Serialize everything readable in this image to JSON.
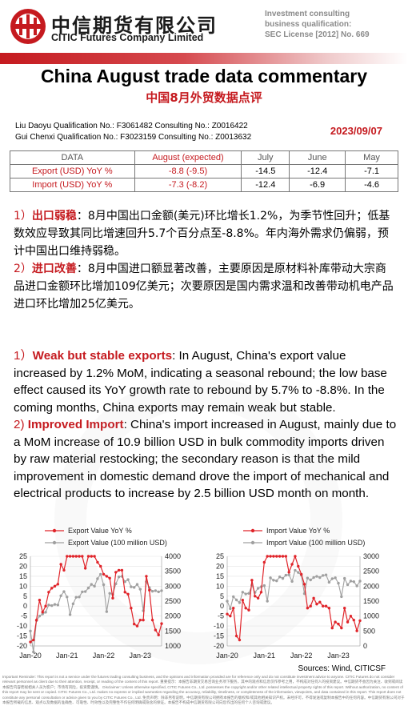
{
  "header": {
    "company_cn": "中信期货有限公司",
    "company_en": "CITIC Futures Company Limited",
    "reg_line1": "Investment consulting",
    "reg_line2": "business qualification:",
    "reg_line3": "SEC License [2012] No. 669",
    "logo_icon": "citic-logo-icon",
    "brand_color": "#c51a1f"
  },
  "title": {
    "en": "China August trade data commentary",
    "cn": "中国8月外贸数据点评"
  },
  "analysts": {
    "line1": "Liu Daoyu  Qualification No.: F3061482  Consulting No.: Z0016422",
    "line2": "Gui Chenxi Qualification No.: F3023159  Consulting No.: Z0013632"
  },
  "date": "2023/09/07",
  "table": {
    "headers": [
      "DATA",
      "August (expected)",
      "July",
      "June",
      "May"
    ],
    "rows": [
      {
        "label": "Export (USD) YoY %",
        "cells": [
          "-8.8 (-9.5)",
          "-14.5",
          "-12.4",
          "-7.1"
        ]
      },
      {
        "label": "Import (USD) YoY %",
        "cells": [
          "-7.3 (-8.2)",
          "-12.4",
          "-6.9",
          "-4.6"
        ]
      }
    ]
  },
  "cn_body": {
    "p1_num": "1）",
    "p1_kw": "出口弱稳",
    "p1_sep": "：",
    "p1_text": "8月中国出口金额(美元)环比增长1.2%，为季节性回升；低基数效应导致其同比增速回升5.7个百分点至-8.8%。年内海外需求仍偏弱，预计中国出口维持弱稳。",
    "p2_num": "2）",
    "p2_kw": "进口改善",
    "p2_sep": "：",
    "p2_text": "8月中国进口额显著改善，主要原因是原材料补库带动大宗商品进口金额环比增加109亿美元；次要原因是国内需求温和改善带动机电产品进口环比增加25亿美元。"
  },
  "en_body": {
    "p1_num": "1）",
    "p1_kw": "Weak but stable exports",
    "p1_text": ": In August, China's export value increased by 1.2% MoM, indicating a seasonal rebound; the low base effect caused its YoY growth rate to rebound by 5.7% to -8.8%. In the coming months, China exports may remain weak but stable.",
    "p2_num": "2) ",
    "p2_kw": "Improved Import",
    "p2_text": ": China's import increased in August, mainly due to a MoM increase of 10.9 billion USD in bulk commodity imports driven by raw material restocking; the secondary reason is that the mild improvement in domestic demand drove the import of mechanical and electrical products to increase by 2.5 billion USD month on month."
  },
  "chart_data": [
    {
      "type": "line",
      "x": [
        "Jan-20",
        "Feb-20",
        "Mar-20",
        "Apr-20",
        "May-20",
        "Jun-20",
        "Jul-20",
        "Aug-20",
        "Sep-20",
        "Oct-20",
        "Nov-20",
        "Dec-20",
        "Jan-21",
        "Feb-21",
        "Mar-21",
        "Apr-21",
        "May-21",
        "Jun-21",
        "Jul-21",
        "Aug-21",
        "Sep-21",
        "Oct-21",
        "Nov-21",
        "Dec-21",
        "Jan-22",
        "Feb-22",
        "Mar-22",
        "Apr-22",
        "May-22",
        "Jun-22",
        "Jul-22",
        "Aug-22",
        "Sep-22",
        "Oct-22",
        "Nov-22",
        "Dec-22",
        "Jan-23",
        "Feb-23",
        "Mar-23",
        "Apr-23",
        "May-23",
        "Jun-23",
        "Jul-23",
        "Aug-23"
      ],
      "xtick_labels": [
        "Jan-20",
        "Jan-21",
        "Jan-22",
        "Jan-23"
      ],
      "series": [
        {
          "name": "Export Value YoY %",
          "axis": "left",
          "color": "#e0242a",
          "values": [
            -18,
            -17,
            -7,
            3,
            -3,
            0,
            7,
            9,
            10,
            11,
            21,
            18,
            25,
            25,
            25,
            25,
            25,
            25,
            19,
            25,
            25,
            25,
            22,
            20,
            16,
            15,
            14,
            4,
            17,
            18,
            18,
            7,
            6,
            -1,
            -9,
            -10,
            -7,
            -7,
            15,
            8,
            -7,
            -12,
            -14.5,
            -8.8
          ]
        },
        {
          "name": "Export Value (100 million USD)",
          "axis": "right",
          "color": "#a0a0a0",
          "values": [
            1500,
            800,
            1850,
            2000,
            2070,
            2130,
            2370,
            2350,
            2390,
            2370,
            2680,
            2820,
            2640,
            2050,
            2410,
            2630,
            2640,
            2810,
            2820,
            2940,
            3060,
            3000,
            3250,
            3400,
            3050,
            2150,
            2760,
            2730,
            3080,
            3310,
            3330,
            3150,
            3220,
            2980,
            2960,
            3060,
            2900,
            2180,
            3150,
            2950,
            2830,
            2850,
            2810,
            2850
          ]
        }
      ],
      "ylim_left": [
        -20,
        25
      ],
      "ylim_right": [
        1000,
        4000
      ],
      "yticks_left": [
        -20,
        -15,
        -10,
        -5,
        0,
        5,
        10,
        15,
        20,
        25
      ],
      "yticks_right": [
        1000,
        1500,
        2000,
        2500,
        3000,
        3500,
        4000
      ],
      "legend": "top-left"
    },
    {
      "type": "line",
      "x": [
        "Jan-20",
        "Feb-20",
        "Mar-20",
        "Apr-20",
        "May-20",
        "Jun-20",
        "Jul-20",
        "Aug-20",
        "Sep-20",
        "Oct-20",
        "Nov-20",
        "Dec-20",
        "Jan-21",
        "Feb-21",
        "Mar-21",
        "Apr-21",
        "May-21",
        "Jun-21",
        "Jul-21",
        "Aug-21",
        "Sep-21",
        "Oct-21",
        "Nov-21",
        "Dec-21",
        "Jan-22",
        "Feb-22",
        "Mar-22",
        "Apr-22",
        "May-22",
        "Jun-22",
        "Jul-22",
        "Aug-22",
        "Sep-22",
        "Oct-22",
        "Nov-22",
        "Dec-22",
        "Jan-23",
        "Feb-23",
        "Mar-23",
        "Apr-23",
        "May-23",
        "Jun-23",
        "Jul-23",
        "Aug-23"
      ],
      "xtick_labels": [
        "Jan-20",
        "Jan-21",
        "Jan-22",
        "Jan-23"
      ],
      "series": [
        {
          "name": "Import Value YoY %",
          "axis": "left",
          "color": "#e0242a",
          "values": [
            -4,
            -5,
            -1,
            -15,
            -17,
            3,
            -1,
            -2,
            13,
            5,
            4,
            7,
            22,
            25,
            25,
            25,
            25,
            25,
            25,
            25,
            17,
            21,
            25,
            20,
            16,
            11,
            -1,
            0,
            4,
            1,
            2,
            0,
            0,
            -1,
            -11,
            -8,
            -9,
            -11,
            -1,
            -8,
            -5,
            -7,
            -12.4,
            -7.3
          ]
        },
        {
          "name": "Import Value (100 million USD)",
          "axis": "right",
          "color": "#a0a0a0",
          "values": [
            1500,
            1250,
            1650,
            1540,
            1450,
            1800,
            1740,
            1760,
            2030,
            1790,
            1930,
            1980,
            2020,
            1500,
            2280,
            2200,
            2180,
            2310,
            2260,
            2370,
            2380,
            2160,
            2530,
            2460,
            2370,
            1750,
            2270,
            2210,
            2290,
            2330,
            2290,
            2360,
            2380,
            2130,
            2250,
            2280,
            2100,
            1650,
            2260,
            2050,
            2170,
            2150,
            2010,
            2170
          ]
        }
      ],
      "ylim_left": [
        -20,
        25
      ],
      "ylim_right": [
        0,
        3000
      ],
      "yticks_left": [
        -20,
        -15,
        -10,
        -5,
        0,
        5,
        10,
        15,
        20,
        25
      ],
      "yticks_right": [
        0,
        500,
        1000,
        1500,
        2000,
        2500,
        3000
      ],
      "legend": "top-left"
    }
  ],
  "sources": "Sources: Wind, CITICSF",
  "disclaimer": "Important Reminder: This report is not a service under the futures trading consulting business, and the opinions and information provided are for reference only and do not constitute investment advice to anyone. CITIC Futures do not consider relevant personnel as client due to their attention, receipt, or reading of the content of this report. 重要提示：本报告非期货交易咨询业务项下服务，其中的观点和信息仅作参考之用，不构成对任何人的投资建议。中信期货不会因为关注、收到或阅读本报告内容而视相关人员为客户；市场有风险，投资需谨慎。 Disclaimer: Unless otherwise specified, CITIC Futures Co., Ltd. possesses the copyright and/or other related intellectual property rights of this report. Without authorization, no content of this report may be sent or copied. CITIC Futures Co., Ltd. makes no express or implied warranties regarding the accuracy, reliability, timeliness, or completeness of the information, viewpoints, and data contained in this report. This report does not constitute any personal consultation or advice given to you by CITIC Futures Co., Ltd. 免责声明：除非另有说明，中信期货有限公司拥有本报告的版权和/或其他相关知识产权。未经许可，不得发送或复制本报告中的任何内容。中信期货有限公司对于本报告所载的信息、观点以及数据的准确性、可靠性、时效性以及完整性不作任何明确或隐含的保证。本报告不构成中信期货有限公司向您作出的任何个人咨询或建议。"
}
